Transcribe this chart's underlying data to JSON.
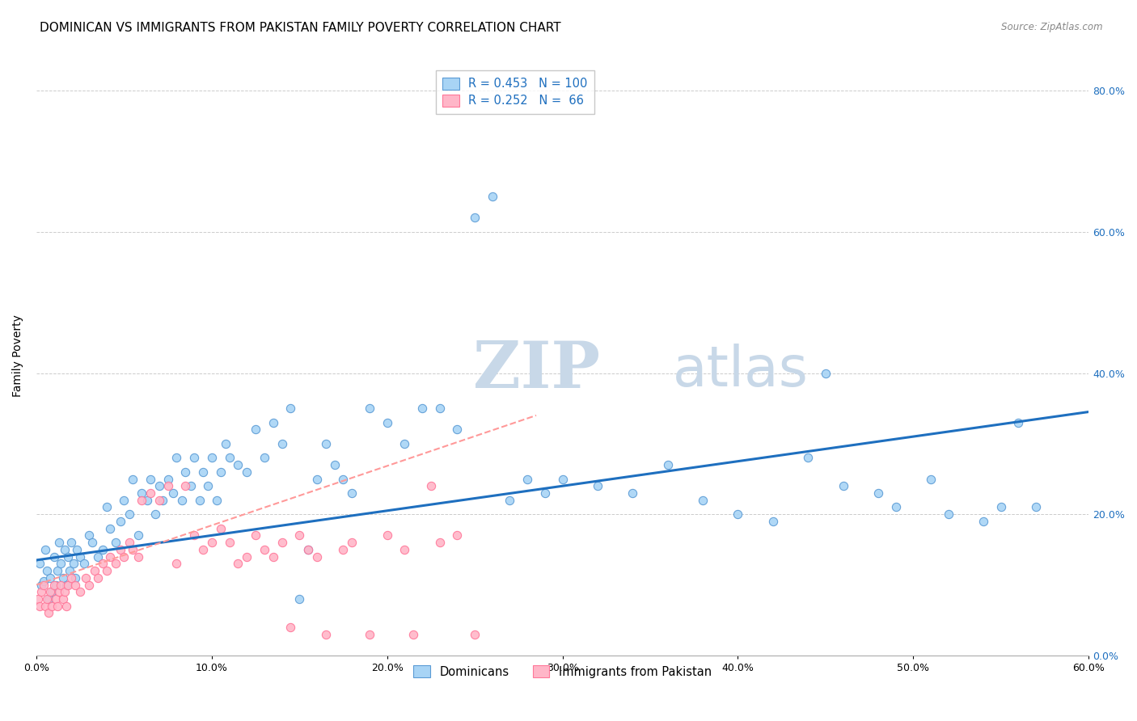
{
  "title": "DOMINICAN VS IMMIGRANTS FROM PAKISTAN FAMILY POVERTY CORRELATION CHART",
  "source": "Source: ZipAtlas.com",
  "ylabel": "Family Poverty",
  "x_min": 0.0,
  "x_max": 0.6,
  "y_min": 0.0,
  "y_max": 0.85,
  "x_ticks": [
    0.0,
    0.1,
    0.2,
    0.3,
    0.4,
    0.5,
    0.6
  ],
  "x_tick_labels": [
    "0.0%",
    "10.0%",
    "20.0%",
    "30.0%",
    "40.0%",
    "50.0%",
    "60.0%"
  ],
  "y_ticks": [
    0.0,
    0.2,
    0.4,
    0.6,
    0.8
  ],
  "y_tick_labels_right": [
    "0.0%",
    "20.0%",
    "40.0%",
    "60.0%",
    "80.0%"
  ],
  "dominican_color": "#A8D4F5",
  "pakistan_color": "#FFB6C8",
  "dominican_edge_color": "#5B9BD5",
  "pakistan_edge_color": "#FF7799",
  "dominican_line_color": "#1E6FBF",
  "pakistan_line_color": "#FF9999",
  "legend_r1": "R = 0.453",
  "legend_n1": "N = 100",
  "legend_r2": "R = 0.252",
  "legend_n2": "N =  66",
  "legend_label1": "Dominicans",
  "legend_label2": "Immigrants from Pakistan",
  "watermark_zip": "ZIP",
  "watermark_atlas": "atlas",
  "watermark_color": "#C8D8E8",
  "background_color": "#FFFFFF",
  "title_fontsize": 11,
  "axis_label_fontsize": 10,
  "tick_fontsize": 9,
  "dominican_points_x": [
    0.002,
    0.003,
    0.004,
    0.005,
    0.006,
    0.007,
    0.008,
    0.009,
    0.01,
    0.011,
    0.012,
    0.013,
    0.014,
    0.015,
    0.016,
    0.017,
    0.018,
    0.019,
    0.02,
    0.021,
    0.022,
    0.023,
    0.025,
    0.027,
    0.03,
    0.032,
    0.035,
    0.038,
    0.04,
    0.042,
    0.045,
    0.048,
    0.05,
    0.053,
    0.055,
    0.058,
    0.06,
    0.063,
    0.065,
    0.068,
    0.07,
    0.072,
    0.075,
    0.078,
    0.08,
    0.083,
    0.085,
    0.088,
    0.09,
    0.093,
    0.095,
    0.098,
    0.1,
    0.103,
    0.105,
    0.108,
    0.11,
    0.115,
    0.12,
    0.125,
    0.13,
    0.135,
    0.14,
    0.145,
    0.15,
    0.155,
    0.16,
    0.165,
    0.17,
    0.175,
    0.18,
    0.19,
    0.2,
    0.21,
    0.22,
    0.23,
    0.24,
    0.25,
    0.26,
    0.27,
    0.28,
    0.29,
    0.3,
    0.32,
    0.34,
    0.36,
    0.38,
    0.4,
    0.42,
    0.44,
    0.45,
    0.46,
    0.48,
    0.49,
    0.51,
    0.52,
    0.54,
    0.55,
    0.56,
    0.57
  ],
  "dominican_points_y": [
    0.13,
    0.1,
    0.105,
    0.15,
    0.12,
    0.08,
    0.11,
    0.09,
    0.14,
    0.1,
    0.12,
    0.16,
    0.13,
    0.11,
    0.15,
    0.1,
    0.14,
    0.12,
    0.16,
    0.13,
    0.11,
    0.15,
    0.14,
    0.13,
    0.17,
    0.16,
    0.14,
    0.15,
    0.21,
    0.18,
    0.16,
    0.19,
    0.22,
    0.2,
    0.25,
    0.17,
    0.23,
    0.22,
    0.25,
    0.2,
    0.24,
    0.22,
    0.25,
    0.23,
    0.28,
    0.22,
    0.26,
    0.24,
    0.28,
    0.22,
    0.26,
    0.24,
    0.28,
    0.22,
    0.26,
    0.3,
    0.28,
    0.27,
    0.26,
    0.32,
    0.28,
    0.33,
    0.3,
    0.35,
    0.08,
    0.15,
    0.25,
    0.3,
    0.27,
    0.25,
    0.23,
    0.35,
    0.33,
    0.3,
    0.35,
    0.35,
    0.32,
    0.62,
    0.65,
    0.22,
    0.25,
    0.23,
    0.25,
    0.24,
    0.23,
    0.27,
    0.22,
    0.2,
    0.19,
    0.28,
    0.4,
    0.24,
    0.23,
    0.21,
    0.25,
    0.2,
    0.19,
    0.21,
    0.33,
    0.21
  ],
  "pakistan_points_x": [
    0.001,
    0.002,
    0.003,
    0.004,
    0.005,
    0.006,
    0.007,
    0.008,
    0.009,
    0.01,
    0.011,
    0.012,
    0.013,
    0.014,
    0.015,
    0.016,
    0.017,
    0.018,
    0.02,
    0.022,
    0.025,
    0.028,
    0.03,
    0.033,
    0.035,
    0.038,
    0.04,
    0.042,
    0.045,
    0.048,
    0.05,
    0.053,
    0.055,
    0.058,
    0.06,
    0.065,
    0.07,
    0.075,
    0.08,
    0.085,
    0.09,
    0.095,
    0.1,
    0.105,
    0.11,
    0.115,
    0.12,
    0.125,
    0.13,
    0.135,
    0.14,
    0.145,
    0.15,
    0.155,
    0.16,
    0.165,
    0.175,
    0.18,
    0.19,
    0.2,
    0.21,
    0.215,
    0.225,
    0.23,
    0.24,
    0.25
  ],
  "pakistan_points_y": [
    0.08,
    0.07,
    0.09,
    0.1,
    0.07,
    0.08,
    0.06,
    0.09,
    0.07,
    0.1,
    0.08,
    0.07,
    0.09,
    0.1,
    0.08,
    0.09,
    0.07,
    0.1,
    0.11,
    0.1,
    0.09,
    0.11,
    0.1,
    0.12,
    0.11,
    0.13,
    0.12,
    0.14,
    0.13,
    0.15,
    0.14,
    0.16,
    0.15,
    0.14,
    0.22,
    0.23,
    0.22,
    0.24,
    0.13,
    0.24,
    0.17,
    0.15,
    0.16,
    0.18,
    0.16,
    0.13,
    0.14,
    0.17,
    0.15,
    0.14,
    0.16,
    0.04,
    0.17,
    0.15,
    0.14,
    0.03,
    0.15,
    0.16,
    0.03,
    0.17,
    0.15,
    0.03,
    0.24,
    0.16,
    0.17,
    0.03
  ],
  "dominican_line_x": [
    0.0,
    0.6
  ],
  "dominican_line_y": [
    0.135,
    0.345
  ],
  "pakistan_line_x": [
    0.0,
    0.285
  ],
  "pakistan_line_y": [
    0.1,
    0.34
  ]
}
